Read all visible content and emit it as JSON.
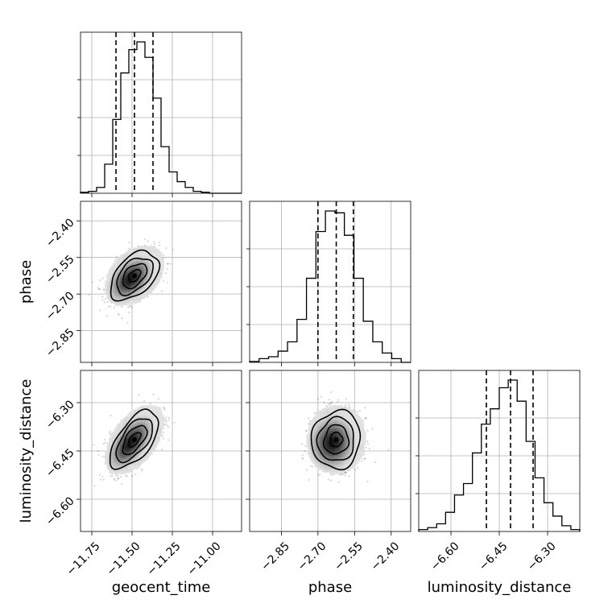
{
  "chart_data": {
    "type": "corner",
    "parameters": [
      {
        "name": "geocent_time",
        "xlim": [
          -11.82,
          -10.82
        ],
        "ticks": [
          -11.75,
          -11.5,
          -11.25,
          -11.0
        ],
        "tick_labels": [
          "−11.75",
          "−11.50",
          "−11.25",
          "−11.00"
        ],
        "quantiles": [
          -11.6,
          -11.485,
          -11.37
        ],
        "hist": [
          0.5,
          1,
          3,
          15,
          38,
          62,
          74,
          78,
          70,
          49,
          24,
          11,
          6,
          3,
          1,
          0.5,
          0,
          0,
          0,
          0
        ]
      },
      {
        "name": "phase",
        "xlim": [
          -2.98,
          -2.32
        ],
        "ticks": [
          -2.85,
          -2.7,
          -2.55,
          -2.4
        ],
        "tick_labels": [
          "−2.85",
          "−2.70",
          "−2.55",
          "−2.40"
        ],
        "quantiles": [
          -2.7,
          -2.625,
          -2.555
        ],
        "hist": [
          0.5,
          2,
          3,
          6,
          11,
          23,
          45,
          70,
          81,
          80,
          68,
          45,
          22,
          11,
          5,
          2,
          0
        ]
      },
      {
        "name": "luminosity_distance",
        "xlim": [
          -6.7,
          -6.2
        ],
        "ticks": [
          -6.6,
          -6.45,
          -6.3
        ],
        "tick_labels": [
          "−6.60",
          "−6.45",
          "−6.30"
        ],
        "quantiles": [
          -6.49,
          -6.415,
          -6.345
        ],
        "hist": [
          1,
          2,
          4,
          10,
          19,
          25,
          41,
          56,
          64,
          75,
          79,
          68,
          47,
          28,
          15,
          8,
          3,
          1
        ]
      }
    ],
    "correlations": [
      {
        "x": "geocent_time",
        "y": "phase",
        "center": [
          -11.485,
          -2.625
        ],
        "sd": [
          0.075,
          0.05
        ],
        "rho": 0.45
      },
      {
        "x": "geocent_time",
        "y": "luminosity_distance",
        "center": [
          -11.485,
          -6.415
        ],
        "sd": [
          0.075,
          0.045
        ],
        "rho": 0.6
      },
      {
        "x": "phase",
        "y": "luminosity_distance",
        "center": [
          -2.625,
          -6.415
        ],
        "sd": [
          0.05,
          0.045
        ],
        "rho": 0.05
      }
    ],
    "contour_levels_sigma": [
      0.5,
      1.0,
      1.5,
      2.0
    ],
    "grid": true
  }
}
